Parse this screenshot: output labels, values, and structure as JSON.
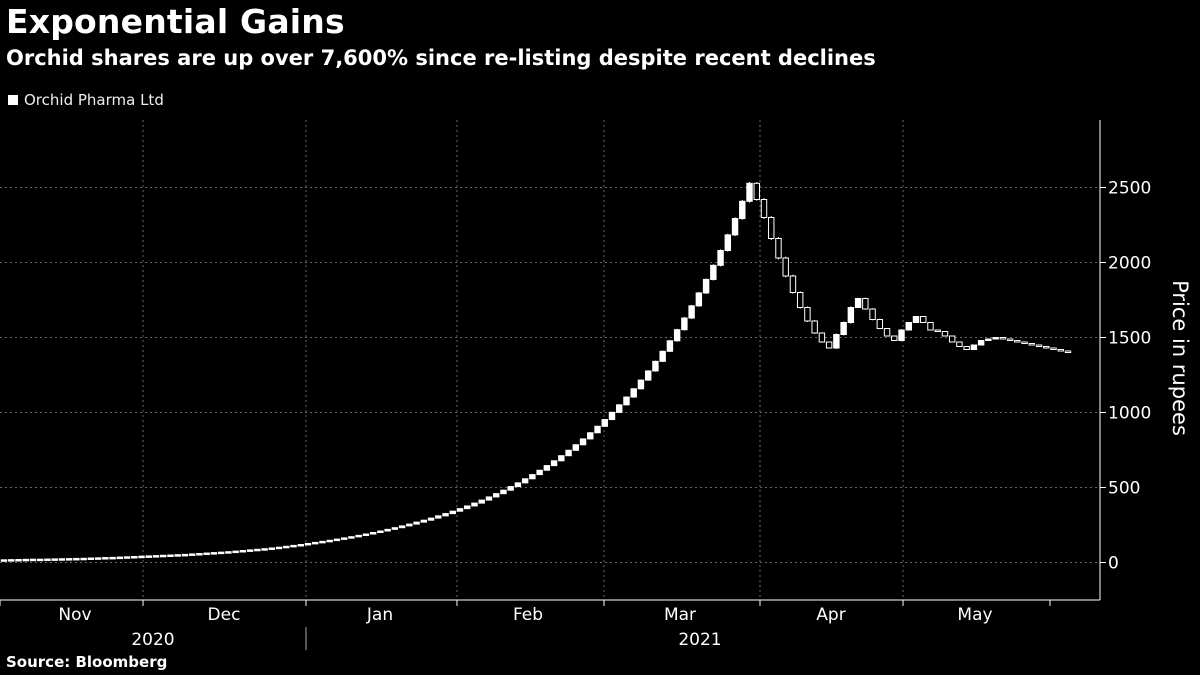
{
  "header": {
    "title": "Exponential Gains",
    "subtitle": "Orchid shares are up over 7,600% since re-listing despite recent declines"
  },
  "legend": {
    "label": "Orchid Pharma Ltd",
    "color": "#ffffff"
  },
  "source": "Source: Bloomberg",
  "chart_data": {
    "type": "candlestick",
    "title": "Exponential Gains",
    "subtitle": "Orchid shares are up over 7,600% since re-listing despite recent declines",
    "ylabel": "Price in rupees",
    "ylim": [
      -250,
      2950
    ],
    "yticks": [
      0,
      500,
      1000,
      1500,
      2000,
      2500
    ],
    "x_month_labels": [
      "Nov",
      "Dec",
      "Jan",
      "Feb",
      "Mar",
      "Apr",
      "May"
    ],
    "x_year_labels": [
      "2020",
      "2021"
    ],
    "grid": true,
    "legend_position": "top-left",
    "series": [
      {
        "name": "Orchid Pharma Ltd",
        "color": "#ffffff",
        "x_start": "2020-11-03",
        "note_values": "daily close price estimates (rupees), trading days",
        "values": [
          18,
          19,
          20,
          21,
          22,
          22,
          23,
          24,
          25,
          26,
          27,
          28,
          30,
          31,
          33,
          34,
          36,
          38,
          40,
          42,
          44,
          46,
          48,
          50,
          52,
          54,
          57,
          60,
          63,
          66,
          69,
          72,
          76,
          80,
          84,
          88,
          92,
          97,
          102,
          108,
          114,
          120,
          127,
          134,
          141,
          148,
          156,
          164,
          172,
          181,
          190,
          200,
          210,
          221,
          232,
          244,
          256,
          269,
          282,
          296,
          311,
          326,
          342,
          359,
          377,
          396,
          416,
          437,
          459,
          482,
          506,
          531,
          558,
          586,
          615,
          646,
          678,
          712,
          748,
          785,
          824,
          865,
          908,
          953,
          1001,
          1051,
          1103,
          1158,
          1216,
          1277,
          1341,
          1408,
          1478,
          1552,
          1630,
          1711,
          1797,
          1887,
          1981,
          2080,
          2184,
          2293,
          2408,
          2528,
          2420,
          2300,
          2160,
          2030,
          1910,
          1800,
          1700,
          1610,
          1530,
          1470,
          1430,
          1520,
          1600,
          1700,
          1760,
          1690,
          1620,
          1560,
          1510,
          1480,
          1550,
          1600,
          1640,
          1600,
          1550,
          1540,
          1510,
          1470,
          1440,
          1420,
          1450,
          1480,
          1490,
          1500,
          1490,
          1480,
          1470,
          1460,
          1450,
          1440,
          1430,
          1420,
          1410,
          1400
        ]
      }
    ]
  }
}
